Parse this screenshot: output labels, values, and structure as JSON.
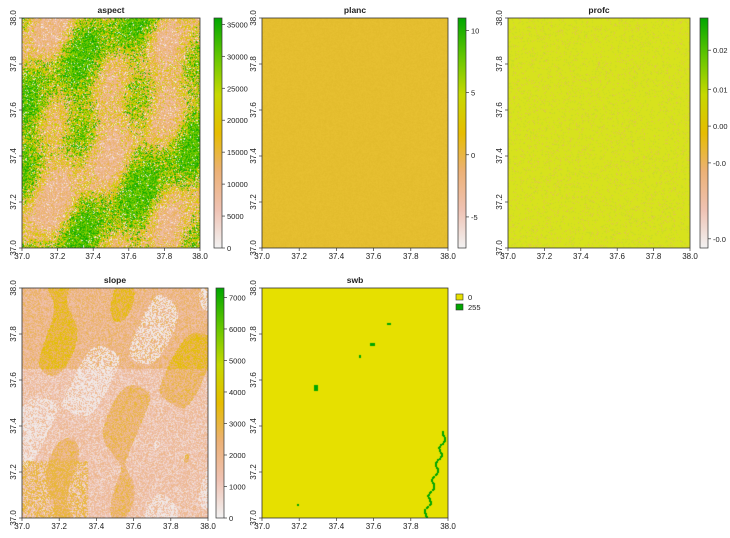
{
  "colors": {
    "terrain_ramp": [
      "#f2f2f2",
      "#efc2b3",
      "#ecb176",
      "#e6bd00",
      "#c6d800",
      "#63c600",
      "#00a600"
    ],
    "planc_fill": "#e5be2f",
    "profc_fill": "#d7e21d",
    "swb_land": "#e6e000",
    "swb_water": "#00a600"
  },
  "panels": [
    {
      "title": "aspect",
      "type": "raster_map",
      "x_ticks": [
        "37.0",
        "37.2",
        "37.4",
        "37.6",
        "37.8",
        "38.0"
      ],
      "y_ticks": [
        "37.0",
        "37.2",
        "37.4",
        "37.6",
        "37.8",
        "38.0"
      ],
      "legend": {
        "kind": "continuous",
        "ticks": [
          "0",
          "5000",
          "10000",
          "15000",
          "20000",
          "25000",
          "30000",
          "35000"
        ],
        "range": [
          0,
          36000
        ]
      },
      "texture": "aspect"
    },
    {
      "title": "planc",
      "type": "raster_map",
      "x_ticks": [
        "37.0",
        "37.2",
        "37.4",
        "37.6",
        "37.8",
        "38.0"
      ],
      "y_ticks": [
        "37.0",
        "37.2",
        "37.4",
        "37.6",
        "37.8",
        "38.0"
      ],
      "legend": {
        "kind": "continuous",
        "ticks": [
          "-5",
          "0",
          "5",
          "10"
        ],
        "range": [
          -7.5,
          11
        ]
      },
      "texture": "planc"
    },
    {
      "title": "profc",
      "type": "raster_map",
      "x_ticks": [
        "37.0",
        "37.2",
        "37.4",
        "37.6",
        "37.8",
        "38.0"
      ],
      "y_ticks": [
        "37.0",
        "37.2",
        "37.4",
        "37.6",
        "37.8",
        "38.0"
      ],
      "legend": {
        "kind": "continuous",
        "ticks": [
          "-0.0",
          "-0.0",
          "0.00",
          "0.01",
          "0.02"
        ],
        "range": [
          -0.03,
          0.028
        ]
      },
      "texture": "profc"
    },
    {
      "title": "slope",
      "type": "raster_map",
      "x_ticks": [
        "37.0",
        "37.2",
        "37.4",
        "37.6",
        "37.8",
        "38.0"
      ],
      "y_ticks": [
        "37.0",
        "37.2",
        "37.4",
        "37.6",
        "37.8",
        "38.0"
      ],
      "legend": {
        "kind": "continuous",
        "ticks": [
          "0",
          "1000",
          "2000",
          "3000",
          "4000",
          "5000",
          "6000",
          "7000"
        ],
        "range": [
          0,
          7300
        ]
      },
      "texture": "slope"
    },
    {
      "title": "swb",
      "type": "raster_map",
      "x_ticks": [
        "37.0",
        "37.2",
        "37.4",
        "37.6",
        "37.8",
        "38.0"
      ],
      "y_ticks": [
        "37.0",
        "37.2",
        "37.4",
        "37.6",
        "37.8",
        "38.0"
      ],
      "legend": {
        "kind": "categorical",
        "entries": [
          {
            "label": "0",
            "color": "#e6e000"
          },
          {
            "label": "255",
            "color": "#00a600"
          }
        ]
      },
      "texture": "swb"
    }
  ],
  "chart_data": [
    {
      "type": "heatmap",
      "title": "aspect",
      "x_range": [
        37.0,
        38.0
      ],
      "y_range": [
        37.0,
        38.0
      ],
      "value_range": [
        0,
        36000
      ],
      "colorbar_ticks": [
        0,
        5000,
        10000,
        15000,
        20000,
        25000,
        30000,
        35000
      ]
    },
    {
      "type": "heatmap",
      "title": "planc",
      "x_range": [
        37.0,
        38.0
      ],
      "y_range": [
        37.0,
        38.0
      ],
      "value_range": [
        -7.5,
        11
      ],
      "colorbar_ticks": [
        -5,
        0,
        5,
        10
      ]
    },
    {
      "type": "heatmap",
      "title": "profc",
      "x_range": [
        37.0,
        38.0
      ],
      "y_range": [
        37.0,
        38.0
      ],
      "value_range": [
        -0.03,
        0.028
      ],
      "colorbar_ticks": [
        "-0.0",
        "-0.0",
        "0.00",
        "0.01",
        "0.02"
      ]
    },
    {
      "type": "heatmap",
      "title": "slope",
      "x_range": [
        37.0,
        38.0
      ],
      "y_range": [
        37.0,
        38.0
      ],
      "value_range": [
        0,
        7300
      ],
      "colorbar_ticks": [
        0,
        1000,
        2000,
        3000,
        4000,
        5000,
        6000,
        7000
      ]
    },
    {
      "type": "heatmap",
      "title": "swb",
      "x_range": [
        37.0,
        38.0
      ],
      "y_range": [
        37.0,
        38.0
      ],
      "categories": [
        "0",
        "255"
      ]
    }
  ]
}
